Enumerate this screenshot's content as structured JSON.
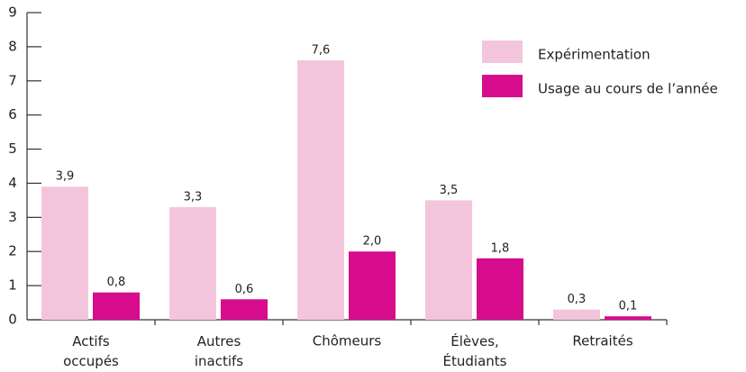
{
  "chart_data": {
    "type": "bar",
    "categories": [
      "Actifs occupés",
      "Autres inactifs",
      "Chômeurs",
      "Élèves, Étudiants",
      "Retraités"
    ],
    "series": [
      {
        "name": "Expérimentation",
        "color": "#f3c5dd",
        "values": [
          3.9,
          3.3,
          7.6,
          3.5,
          0.3
        ],
        "value_labels": [
          "3,9",
          "3,3",
          "7,6",
          "3,5",
          "0,3"
        ]
      },
      {
        "name": "Usage au cours de l’année",
        "color": "#d60c8c",
        "values": [
          0.8,
          0.6,
          2.0,
          1.8,
          0.1
        ],
        "value_labels": [
          "0,8",
          "0,6",
          "2,0",
          "1,8",
          "0,1"
        ]
      }
    ],
    "ylim": [
      0,
      9
    ],
    "yticks": [
      0,
      1,
      2,
      3,
      4,
      5,
      6,
      7,
      8,
      9
    ],
    "legend": "upper right"
  }
}
